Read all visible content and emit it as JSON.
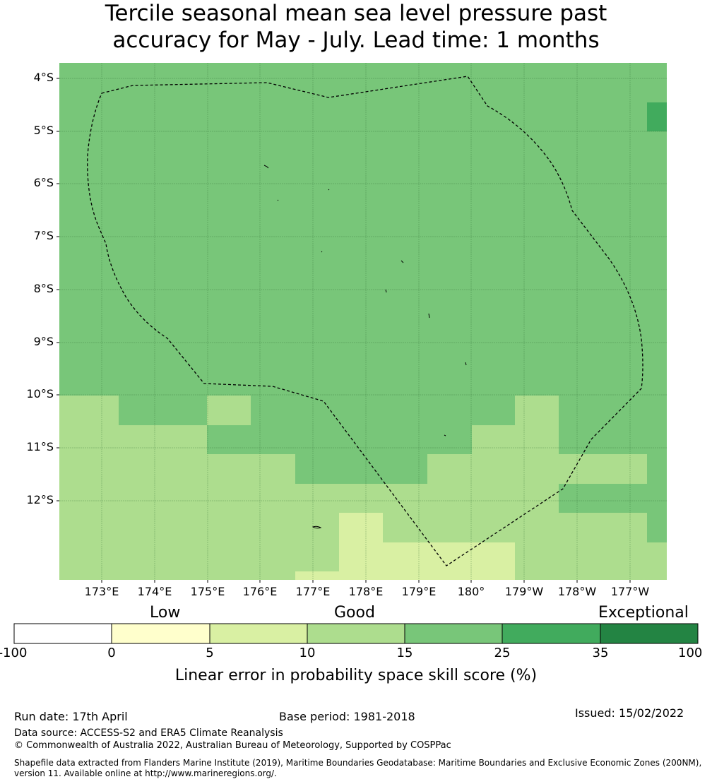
{
  "title": {
    "line1": "Tercile seasonal mean sea level pressure past",
    "line2": "accuracy for May - July. Lead time: 1 months"
  },
  "map": {
    "lat_labels": [
      "4°S",
      "5°S",
      "6°S",
      "7°S",
      "8°S",
      "9°S",
      "10°S",
      "11°S",
      "12°S"
    ],
    "lon_labels": [
      "173°E",
      "174°E",
      "175°E",
      "176°E",
      "177°E",
      "178°E",
      "179°E",
      "180°",
      "179°W",
      "178°W",
      "177°W"
    ],
    "boundary": "dashed maritime boundary (EEZ)"
  },
  "colorbar": {
    "categories": [
      "Low",
      "Good",
      "Exceptional"
    ],
    "ticks": [
      "-100",
      "0",
      "5",
      "10",
      "15",
      "25",
      "35",
      "100"
    ],
    "colors": [
      "#ffffff",
      "#ffffcc",
      "#d9f0a3",
      "#addd8e",
      "#78c679",
      "#41ab5d",
      "#238443"
    ],
    "title": "Linear error in probability space skill score (%)"
  },
  "footer": {
    "run_date": "Run date: 17th April",
    "base_period": "Base period: 1981-2018",
    "issued": "Issued: 15/02/2022",
    "data_source": "Data source: ACCESS-S2 and ERA5 Climate Reanalysis",
    "copyright": "© Commonwealth of Australia 2022, Australian Bureau of Meteorology, Supported by COSPPac",
    "shapefile_line1": "Shapefile data extracted from Flanders Marine Institute (2019), Maritime Boundaries Geodatabase: Maritime Boundaries and Exclusive Economic Zones (200NM),",
    "shapefile_line2": "version 11. Available online at http://www.marineregions.org/."
  }
}
